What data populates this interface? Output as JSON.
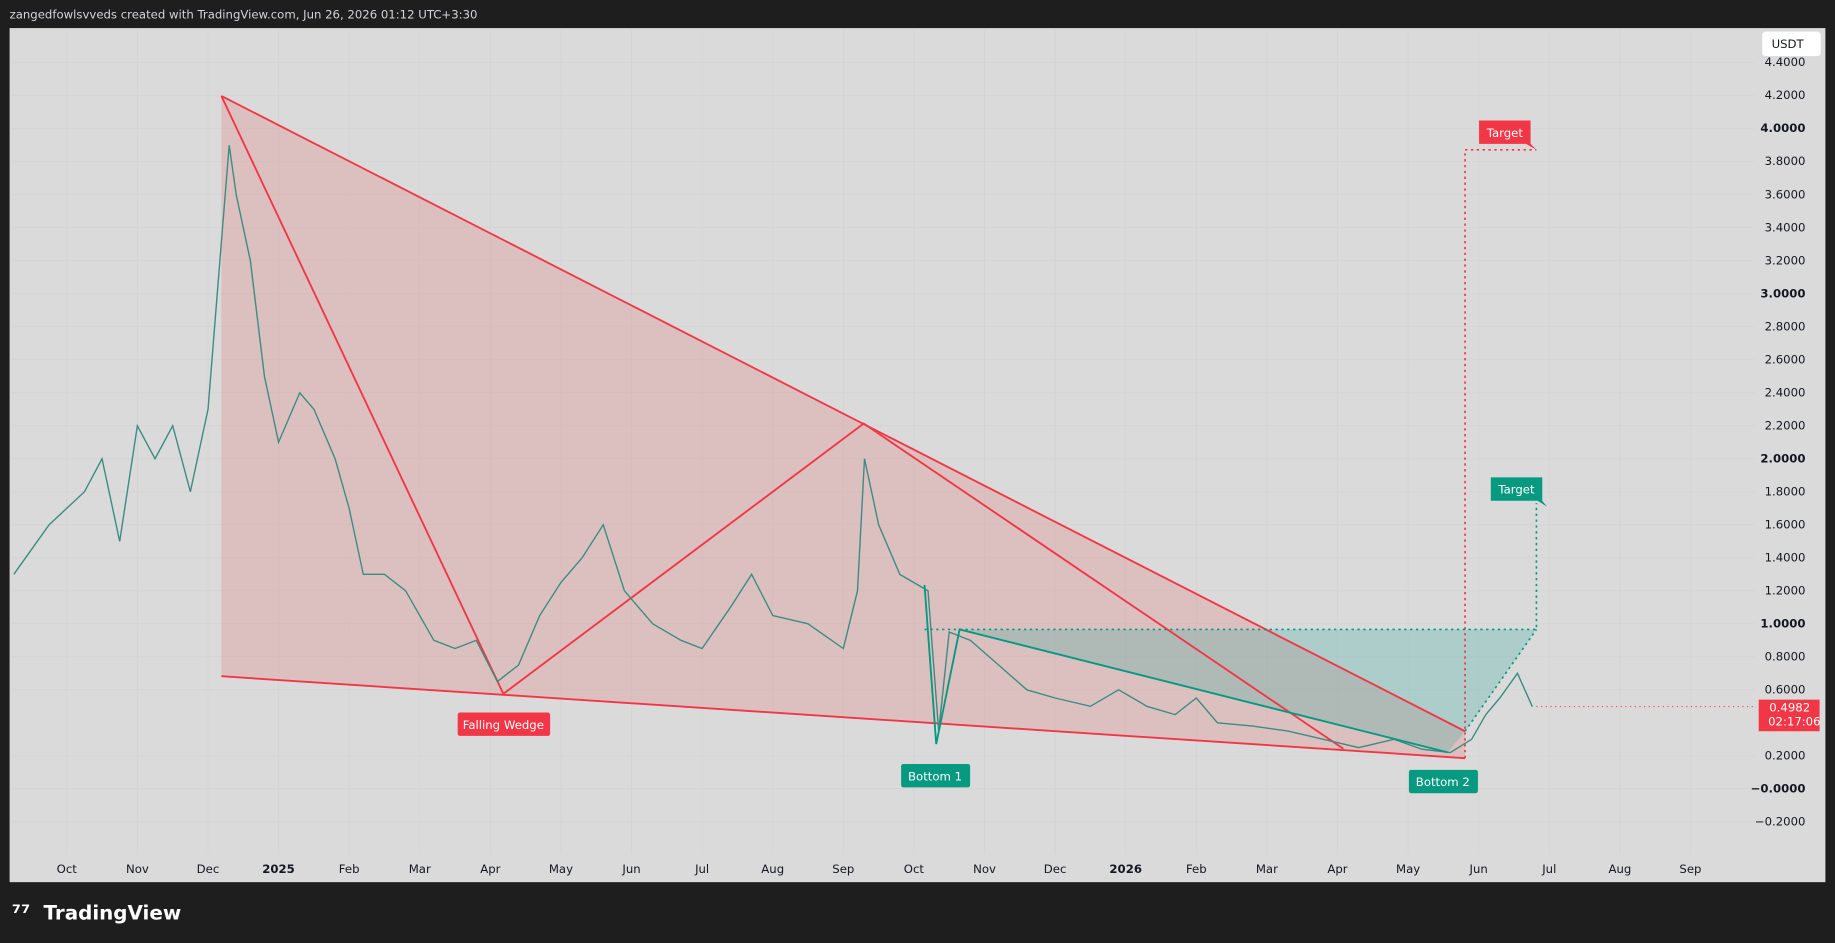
{
  "header": {
    "text": "zangedfowlsvveds created with TradingView.com, Jun 26, 2026 01:12 UTC+3:30"
  },
  "chart": {
    "currency": "USDT",
    "ylim": [
      -0.36,
      4.61
    ],
    "xlim": [
      -0.81,
      24
    ],
    "yticks": [
      {
        "value": 4.4,
        "label": "4.4000"
      },
      {
        "value": 4.2,
        "label": "4.2000"
      },
      {
        "value": 4,
        "label": "4.0000"
      },
      {
        "value": 3.8,
        "label": "3.8000"
      },
      {
        "value": 3.6,
        "label": "3.6000"
      },
      {
        "value": 3.4,
        "label": "3.4000"
      },
      {
        "value": 3.2,
        "label": "3.2000"
      },
      {
        "value": 3,
        "label": "3.0000"
      },
      {
        "value": 2.8,
        "label": "2.8000"
      },
      {
        "value": 2.6,
        "label": "2.6000"
      },
      {
        "value": 2.4,
        "label": "2.4000"
      },
      {
        "value": 2.2,
        "label": "2.2000"
      },
      {
        "value": 2,
        "label": "2.0000"
      },
      {
        "value": 1.8,
        "label": "1.8000"
      },
      {
        "value": 1.6,
        "label": "1.6000"
      },
      {
        "value": 1.4,
        "label": "1.4000"
      },
      {
        "value": 1.2,
        "label": "1.2000"
      },
      {
        "value": 1,
        "label": "1.0000"
      },
      {
        "value": 0.8,
        "label": "0.8000"
      },
      {
        "value": 0.6,
        "label": "0.6000"
      },
      {
        "value": 0.2,
        "label": "0.2000"
      },
      {
        "value": 0,
        "label": "−0.0000"
      },
      {
        "value": -0.2,
        "label": "−0.2000"
      }
    ],
    "xticks": [
      {
        "value": 0,
        "label": "Oct"
      },
      {
        "value": 1,
        "label": "Nov"
      },
      {
        "value": 2,
        "label": "Dec"
      },
      {
        "value": 3,
        "label": "2025"
      },
      {
        "value": 4,
        "label": "Feb"
      },
      {
        "value": 5,
        "label": "Mar"
      },
      {
        "value": 6,
        "label": "Apr"
      },
      {
        "value": 7,
        "label": "May"
      },
      {
        "value": 8,
        "label": "Jun"
      },
      {
        "value": 9,
        "label": "Jul"
      },
      {
        "value": 10,
        "label": "Aug"
      },
      {
        "value": 11,
        "label": "Sep"
      },
      {
        "value": 12,
        "label": "Oct"
      },
      {
        "value": 13,
        "label": "Nov"
      },
      {
        "value": 14,
        "label": "Dec"
      },
      {
        "value": 15,
        "label": "2026"
      },
      {
        "value": 16,
        "label": "Feb"
      },
      {
        "value": 17,
        "label": "Mar"
      },
      {
        "value": 18,
        "label": "Apr"
      },
      {
        "value": 19,
        "label": "May"
      },
      {
        "value": 20,
        "label": "Jun"
      },
      {
        "value": 21,
        "label": "Jul"
      },
      {
        "value": 22,
        "label": "Aug"
      },
      {
        "value": 23,
        "label": "Sep"
      }
    ],
    "price": {
      "x": [
        -0.75,
        -0.25,
        0.25,
        0.5,
        0.75,
        1.0,
        1.25,
        1.5,
        1.75,
        2.0,
        2.15,
        2.3,
        2.4,
        2.6,
        2.8,
        3.0,
        3.3,
        3.5,
        3.8,
        4.0,
        4.2,
        4.5,
        4.8,
        5.2,
        5.5,
        5.8,
        6.1,
        6.4,
        6.7,
        7.0,
        7.3,
        7.6,
        7.9,
        8.3,
        8.7,
        9.0,
        9.4,
        9.7,
        10.0,
        10.5,
        11.0,
        11.2,
        11.3,
        11.5,
        11.8,
        12.2,
        12.35,
        12.5,
        12.8,
        13.2,
        13.6,
        14.0,
        14.5,
        14.9,
        15.3,
        15.7,
        16.0,
        16.3,
        16.8,
        17.3,
        17.8,
        18.3,
        18.8,
        19.2,
        19.6,
        19.9,
        20.1,
        20.3,
        20.55,
        20.76
      ],
      "values": [
        1.3,
        1.6,
        1.8,
        2.0,
        1.5,
        2.2,
        2.0,
        2.2,
        1.8,
        2.3,
        3.1,
        3.9,
        3.6,
        3.2,
        2.5,
        2.1,
        2.4,
        2.3,
        2.0,
        1.7,
        1.3,
        1.3,
        1.2,
        0.9,
        0.85,
        0.9,
        0.65,
        0.75,
        1.05,
        1.25,
        1.4,
        1.6,
        1.2,
        1.0,
        0.9,
        0.85,
        1.1,
        1.3,
        1.05,
        1.0,
        0.85,
        1.2,
        2.0,
        1.6,
        1.3,
        1.2,
        0.35,
        0.95,
        0.9,
        0.75,
        0.6,
        0.55,
        0.5,
        0.6,
        0.5,
        0.45,
        0.55,
        0.4,
        0.38,
        0.35,
        0.3,
        0.25,
        0.3,
        0.24,
        0.22,
        0.3,
        0.45,
        0.55,
        0.7,
        0.4982
      ]
    },
    "last_price": 0.4982,
    "countdown": "02:17:06",
    "annotations": [
      "Falling Wedge",
      "Bottom 1",
      "Bottom 2",
      "Target",
      "Target"
    ]
  },
  "footer": {
    "logo": "TradingView"
  }
}
